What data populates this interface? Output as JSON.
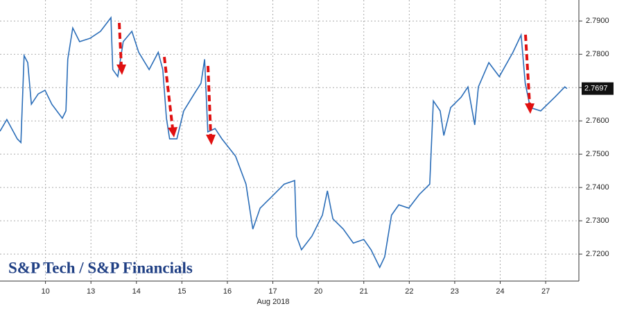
{
  "chart_data": {
    "type": "line",
    "title": "S&P Tech / S&P Financials",
    "x_label": "Aug 2018",
    "x": [
      0,
      0.15,
      0.38,
      0.46,
      0.53,
      0.61,
      0.69,
      0.84,
      0.99,
      1.14,
      1.37,
      1.45,
      1.49,
      1.6,
      1.75,
      1.98,
      2.21,
      2.44,
      2.48,
      2.59,
      2.71,
      2.9,
      3.05,
      3.28,
      3.48,
      3.58,
      3.66,
      3.73,
      3.89,
      4.04,
      4.27,
      4.42,
      4.5,
      4.57,
      4.73,
      4.88,
      5.18,
      5.41,
      5.56,
      5.72,
      5.95,
      6.25,
      6.48,
      6.52,
      6.63,
      6.86,
      7.09,
      7.2,
      7.32,
      7.55,
      7.77,
      8.0,
      8.16,
      8.35,
      8.46,
      8.61,
      8.77,
      8.99,
      9.22,
      9.45,
      9.53,
      9.68,
      9.76,
      9.91,
      10.14,
      10.29,
      10.44,
      10.52,
      10.75,
      10.98,
      11.28,
      11.46,
      11.55,
      11.66,
      11.89,
      12.2,
      12.42,
      12.47
    ],
    "series": [
      {
        "color": "#2a6db8",
        "values": [
          2.7569,
          2.7604,
          2.7546,
          2.7535,
          2.7796,
          2.7775,
          2.765,
          2.7681,
          2.7692,
          2.765,
          2.7608,
          2.763,
          2.7785,
          2.7879,
          2.7838,
          2.7848,
          2.7869,
          2.791,
          2.7754,
          2.7733,
          2.7838,
          2.7869,
          2.7806,
          2.7754,
          2.7806,
          2.7754,
          2.7608,
          2.7546,
          2.7546,
          2.763,
          2.7681,
          2.7713,
          2.7785,
          2.7567,
          2.7577,
          2.7546,
          2.7494,
          2.741,
          2.7275,
          2.7338,
          2.7369,
          2.741,
          2.7421,
          2.7254,
          2.7213,
          2.7254,
          2.7317,
          2.739,
          2.7306,
          2.7275,
          2.7233,
          2.7244,
          2.7213,
          2.716,
          2.7192,
          2.7317,
          2.7348,
          2.7338,
          2.7379,
          2.741,
          2.766,
          2.763,
          2.7556,
          2.764,
          2.7671,
          2.7702,
          2.7588,
          2.7702,
          2.7775,
          2.7733,
          2.7806,
          2.7858,
          2.7713,
          2.764,
          2.763,
          2.7671,
          2.7702,
          2.7697
        ]
      }
    ],
    "xlim": [
      0,
      12.73
    ],
    "xticks": [
      {
        "value": 1,
        "label": "10"
      },
      {
        "value": 2,
        "label": "13"
      },
      {
        "value": 3,
        "label": "14"
      },
      {
        "value": 4,
        "label": "15"
      },
      {
        "value": 5,
        "label": "16"
      },
      {
        "value": 6,
        "label": "17"
      },
      {
        "value": 7,
        "label": "20"
      },
      {
        "value": 8,
        "label": "21"
      },
      {
        "value": 9,
        "label": "22"
      },
      {
        "value": 10,
        "label": "23"
      },
      {
        "value": 11,
        "label": "24"
      },
      {
        "value": 12,
        "label": "27"
      }
    ],
    "ylim": [
      2.7119,
      2.7963
    ],
    "yticks": [
      {
        "value": 2.72,
        "label": "2.7200"
      },
      {
        "value": 2.73,
        "label": "2.7300"
      },
      {
        "value": 2.74,
        "label": "2.7400"
      },
      {
        "value": 2.75,
        "label": "2.7500"
      },
      {
        "value": 2.76,
        "label": "2.7600"
      },
      {
        "value": 2.77,
        "label": "2.7700"
      },
      {
        "value": 2.78,
        "label": "2.7800"
      },
      {
        "value": 2.79,
        "label": "2.7900"
      }
    ],
    "grid": true
  }
}
